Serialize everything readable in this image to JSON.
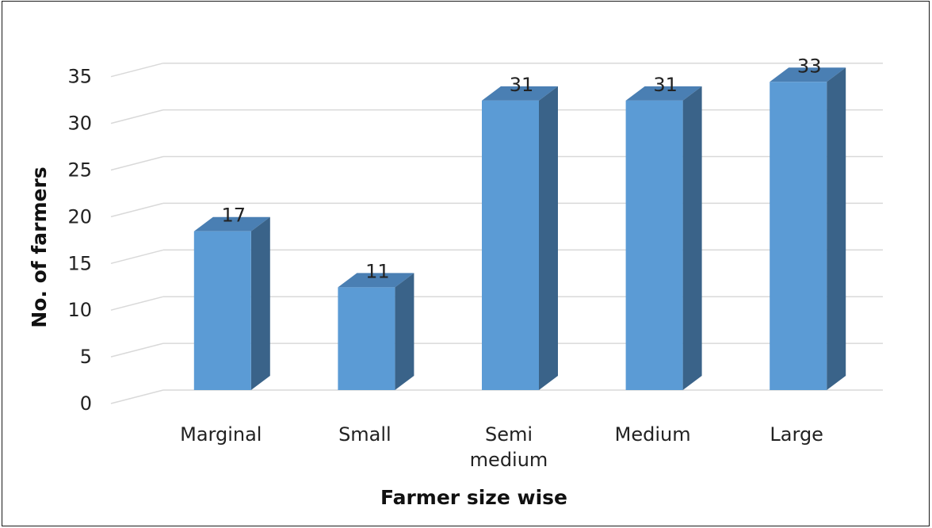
{
  "chart_data": {
    "type": "bar",
    "style": "3d-clustered-column",
    "categories": [
      "Marginal",
      "Small",
      "Semi medium",
      "Medium",
      "Large"
    ],
    "category_lines": [
      [
        "Marginal"
      ],
      [
        "Small"
      ],
      [
        "Semi",
        "medium"
      ],
      [
        "Medium"
      ],
      [
        "Large"
      ]
    ],
    "values": [
      17,
      11,
      31,
      31,
      33
    ],
    "data_labels": [
      "17",
      "11",
      "31",
      "31",
      "33"
    ],
    "xlabel": "Farmer size wise",
    "ylabel": "No. of farmers",
    "ylim": [
      0,
      35
    ],
    "yticks": [
      0,
      5,
      10,
      15,
      20,
      25,
      30,
      35
    ],
    "grid": true,
    "legend": "none",
    "colors": {
      "bar_front": "#5b9bd5",
      "bar_top": "#4a7fb3",
      "bar_side": "#3a6389",
      "gridline": "#d9d9d9",
      "text": "#222222"
    }
  }
}
